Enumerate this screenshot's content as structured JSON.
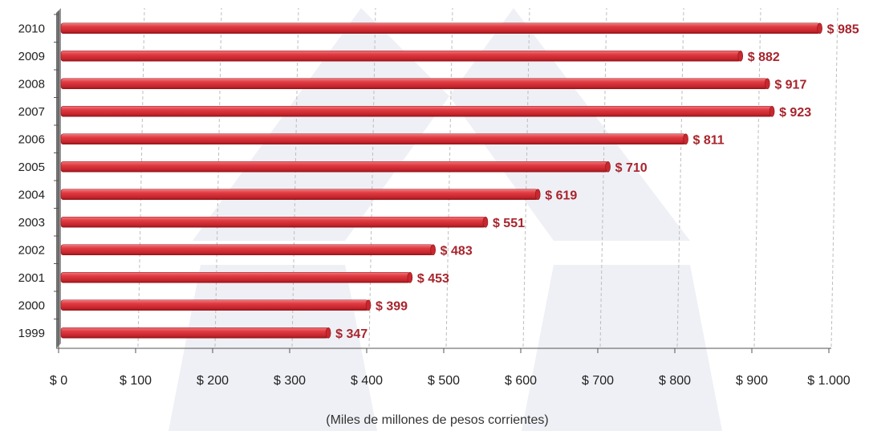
{
  "chart_data": {
    "type": "bar",
    "orientation": "horizontal",
    "categories": [
      "1999",
      "2000",
      "2001",
      "2002",
      "2003",
      "2004",
      "2005",
      "2006",
      "2007",
      "2008",
      "2009",
      "2010"
    ],
    "values": [
      347,
      399,
      453,
      483,
      551,
      619,
      710,
      811,
      923,
      917,
      882,
      985
    ],
    "data_labels": [
      "$ 347",
      "$ 399",
      "$ 453",
      "$ 483",
      "$ 551",
      "$ 619",
      "$ 710",
      "$ 811",
      "$ 923",
      "$ 917",
      "$ 882",
      "$ 985"
    ],
    "x_ticks": [
      0,
      100,
      200,
      300,
      400,
      500,
      600,
      700,
      800,
      900,
      1000
    ],
    "x_tick_labels": [
      "$ 0",
      "$ 100",
      "$ 200",
      "$ 300",
      "$ 400",
      "$ 500",
      "$ 600",
      "$ 700",
      "$ 800",
      "$ 900",
      "$ 1.000"
    ],
    "xlabel": "(Miles de millones de pesos corrientes)",
    "ylabel": "",
    "title": "",
    "xlim": [
      0,
      1000
    ],
    "grid": "vertical-dashed",
    "legend": "none",
    "colors": {
      "bar": "#d9333b",
      "label": "#a8242c",
      "watermark": "#eef0f5"
    }
  }
}
